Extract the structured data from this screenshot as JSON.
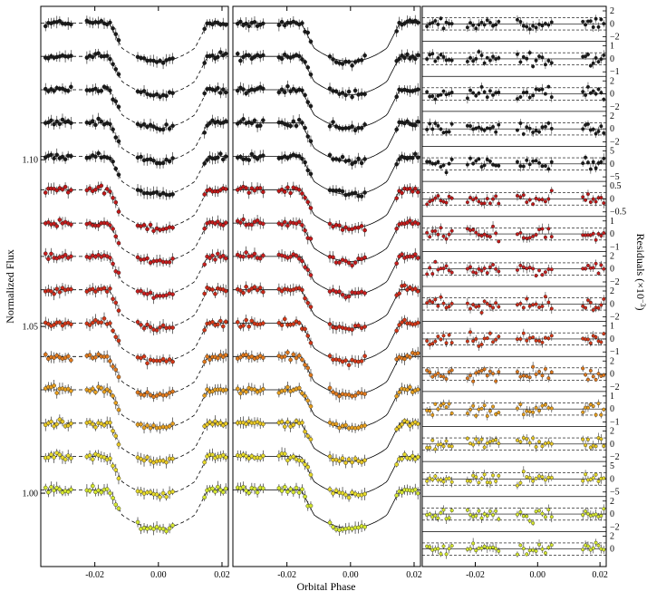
{
  "chart_data": {
    "type": "scatter",
    "xlabel": "Orbital Phase",
    "ylabel_left": "Normalized Flux",
    "ylabel_right": "Residuals (×10",
    "ylabel_right_exp": "−3",
    "ylabel_right_close": ")",
    "x_ticks": [
      -0.02,
      0.0,
      0.02
    ],
    "x_tick_labels": [
      "-0.02",
      "0.00",
      "0.02"
    ],
    "xlim": [
      -0.037,
      0.022
    ],
    "y_ticks": [
      1.0,
      1.05,
      1.1
    ],
    "y_tick_labels": [
      "1.00",
      "1.05",
      "1.10"
    ],
    "ylim": [
      0.978,
      1.146
    ],
    "transit": {
      "depth": 0.0115,
      "t_ingress_start": 0.0155,
      "t_full": 0.0115
    },
    "light_curves": {
      "count": 15,
      "baselines": [
        1.141,
        1.131,
        1.121,
        1.111,
        1.101,
        1.091,
        1.081,
        1.071,
        1.061,
        1.051,
        1.041,
        1.031,
        1.021,
        1.011,
        1.001
      ],
      "colors": [
        "#1a1a1a",
        "#1a1a1a",
        "#1a1a1a",
        "#1a1a1a",
        "#1a1a1a",
        "#c01818",
        "#c41c1c",
        "#c82020",
        "#cc2a1a",
        "#d43818",
        "#e07a1e",
        "#e8a020",
        "#e8c826",
        "#e8dc2c",
        "#d6e830"
      ]
    },
    "residual_panels": [
      {
        "ticks": [
          2,
          0,
          -2
        ],
        "labels": [
          "2",
          "0",
          "−2"
        ]
      },
      {
        "ticks": [
          1,
          0,
          -1
        ],
        "labels": [
          "1",
          "0",
          "−1"
        ]
      },
      {
        "ticks": [
          2,
          0,
          -2
        ],
        "labels": [
          "2",
          "0",
          "−2"
        ]
      },
      {
        "ticks": [
          2,
          0,
          -2
        ],
        "labels": [
          "2",
          "0",
          "−2"
        ]
      },
      {
        "ticks": [
          5,
          0,
          -5
        ],
        "labels": [
          "5",
          "0",
          "−5"
        ]
      },
      {
        "ticks": [
          0.5,
          0,
          -0.5
        ],
        "labels": [
          "0.5",
          "0",
          "−0.5"
        ]
      },
      {
        "ticks": [
          1,
          0,
          -1
        ],
        "labels": [
          "1",
          "0",
          "−1"
        ]
      },
      {
        "ticks": [
          2,
          0,
          -2
        ],
        "labels": [
          "2",
          "0",
          "−2"
        ]
      },
      {
        "ticks": [
          2,
          0,
          -2
        ],
        "labels": [
          "2",
          "0",
          "−2"
        ]
      },
      {
        "ticks": [
          1,
          0,
          -1
        ],
        "labels": [
          "1",
          "0",
          "−1"
        ]
      },
      {
        "ticks": [
          2,
          0,
          -2
        ],
        "labels": [
          "2",
          "0",
          "−2"
        ]
      },
      {
        "ticks": [
          1,
          0,
          -1
        ],
        "labels": [
          "1",
          "0",
          "−1"
        ]
      },
      {
        "ticks": [
          2,
          0,
          -2
        ],
        "labels": [
          "2",
          "0",
          "−2"
        ]
      },
      {
        "ticks": [
          5,
          0,
          -5
        ],
        "labels": [
          "5",
          "0",
          "−5"
        ]
      },
      {
        "ticks": [
          2,
          0,
          -2
        ],
        "labels": [
          "2",
          "0",
          "−2"
        ]
      },
      {
        "ticks": [
          2,
          0
        ],
        "labels": [
          "2",
          "0"
        ]
      }
    ]
  }
}
